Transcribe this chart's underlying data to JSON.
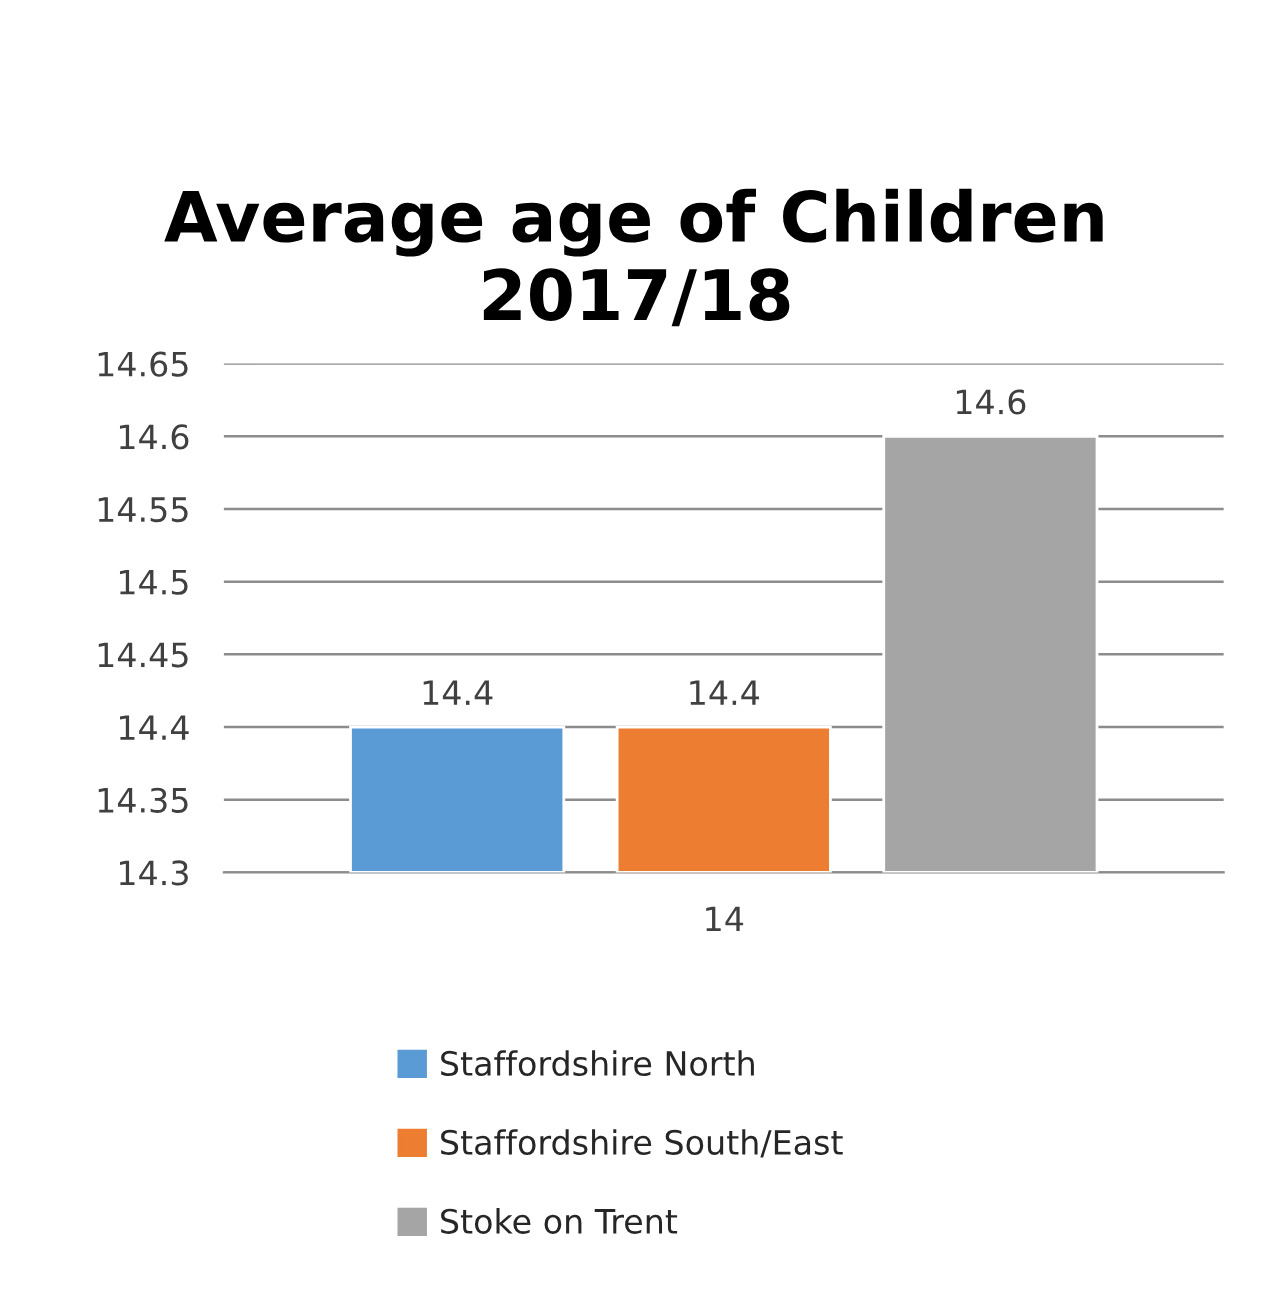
{
  "chart_data": {
    "type": "bar",
    "title": "Average age of Children 2017/18",
    "categories": [
      "14"
    ],
    "series": [
      {
        "name": "Staffordshire North",
        "color": "#5b9bd5",
        "values": [
          14.4
        ]
      },
      {
        "name": "Staffordshire South/East",
        "color": "#ed7d31",
        "values": [
          14.4
        ]
      },
      {
        "name": "Stoke on Trent",
        "color": "#a5a5a5",
        "values": [
          14.6
        ]
      }
    ],
    "ylim": [
      14.3,
      14.65
    ],
    "yticks": [
      14.3,
      14.35,
      14.4,
      14.45,
      14.5,
      14.55,
      14.6,
      14.65
    ],
    "grid": "y",
    "data_labels": true,
    "legend": "bottom"
  }
}
